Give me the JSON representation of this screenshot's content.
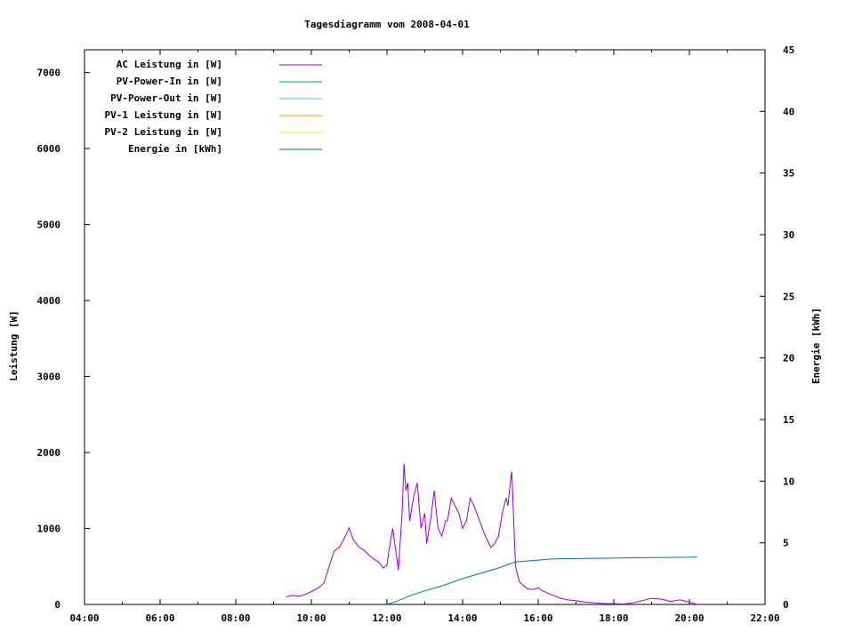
{
  "chart_data": {
    "type": "line",
    "title": "Tagesdiagramm vom 2008-04-01",
    "xlabel": "",
    "ylabel_left": "Leistung [W]",
    "ylabel_right": "Energie [kWh]",
    "x_range_hours": [
      4,
      22
    ],
    "x_ticks": [
      "04:00",
      "06:00",
      "08:00",
      "10:00",
      "12:00",
      "14:00",
      "16:00",
      "18:00",
      "20:00",
      "22:00"
    ],
    "ylim_left": [
      0,
      7300
    ],
    "y_ticks_left": [
      "0",
      "1000",
      "2000",
      "3000",
      "4000",
      "5000",
      "6000",
      "7000"
    ],
    "ylim_right": [
      0,
      45
    ],
    "y_ticks_right": [
      "0",
      "5",
      "10",
      "15",
      "20",
      "25",
      "30",
      "35",
      "40",
      "45"
    ],
    "grid": false,
    "legend_position": "top-left",
    "legend": [
      {
        "label": "AC Leistung in [W]",
        "color": "#9400d3"
      },
      {
        "label": "PV-Power-In in [W]",
        "color": "#009e73"
      },
      {
        "label": "PV-Power-Out in [W]",
        "color": "#56b4e9"
      },
      {
        "label": "PV-1 Leistung in [W]",
        "color": "#e69f00"
      },
      {
        "label": "PV-2 Leistung in [W]",
        "color": "#f0e442"
      },
      {
        "label": "Energie in [kWh]",
        "color": "#0072b2"
      }
    ],
    "series": [
      {
        "name": "AC Leistung in [W]",
        "axis": "left",
        "color": "#9400d3",
        "x": [
          9.33,
          9.5,
          9.67,
          9.83,
          10.0,
          10.17,
          10.33,
          10.5,
          10.6,
          10.75,
          10.9,
          11.0,
          11.1,
          11.25,
          11.4,
          11.5,
          11.65,
          11.8,
          11.9,
          12.0,
          12.05,
          12.15,
          12.25,
          12.3,
          12.4,
          12.45,
          12.5,
          12.55,
          12.6,
          12.7,
          12.8,
          12.9,
          13.0,
          13.05,
          13.15,
          13.25,
          13.35,
          13.45,
          13.55,
          13.6,
          13.7,
          13.8,
          13.9,
          14.0,
          14.1,
          14.2,
          14.3,
          14.45,
          14.6,
          14.75,
          14.85,
          14.95,
          15.05,
          15.15,
          15.2,
          15.25,
          15.3,
          15.4,
          15.5,
          15.6,
          15.75,
          15.9,
          16.0,
          16.1,
          16.25,
          16.4,
          16.6,
          16.8,
          17.0,
          17.25,
          17.5,
          17.75,
          18.0,
          18.25,
          18.5,
          18.75,
          19.0,
          19.25,
          19.5,
          19.75,
          20.0,
          20.2
        ],
        "y": [
          100,
          120,
          110,
          130,
          170,
          210,
          280,
          550,
          700,
          760,
          900,
          1010,
          860,
          760,
          710,
          660,
          600,
          550,
          480,
          520,
          700,
          1000,
          650,
          450,
          1200,
          1850,
          1500,
          1600,
          1100,
          1400,
          1600,
          1000,
          1200,
          800,
          1100,
          1500,
          1000,
          900,
          1100,
          1100,
          1400,
          1300,
          1200,
          1000,
          1100,
          1400,
          1300,
          1100,
          900,
          750,
          800,
          900,
          1200,
          1400,
          1300,
          1550,
          1750,
          500,
          300,
          250,
          200,
          200,
          220,
          180,
          150,
          120,
          80,
          60,
          50,
          30,
          20,
          10,
          10,
          5,
          20,
          50,
          80,
          70,
          40,
          60,
          30,
          0
        ]
      },
      {
        "name": "Energie in [kWh]",
        "axis": "right",
        "color": "#0072b2",
        "x": [
          12.0,
          12.3,
          12.6,
          13.0,
          13.5,
          14.0,
          14.5,
          15.0,
          15.2,
          15.4,
          15.6,
          15.8,
          16.0,
          16.2,
          16.4,
          17.0,
          18.0,
          19.0,
          20.0,
          20.2
        ],
        "y": [
          0.0,
          0.3,
          0.7,
          1.1,
          1.55,
          2.1,
          2.55,
          3.0,
          3.25,
          3.45,
          3.5,
          3.55,
          3.6,
          3.65,
          3.7,
          3.72,
          3.76,
          3.8,
          3.83,
          3.85
        ]
      }
    ]
  }
}
